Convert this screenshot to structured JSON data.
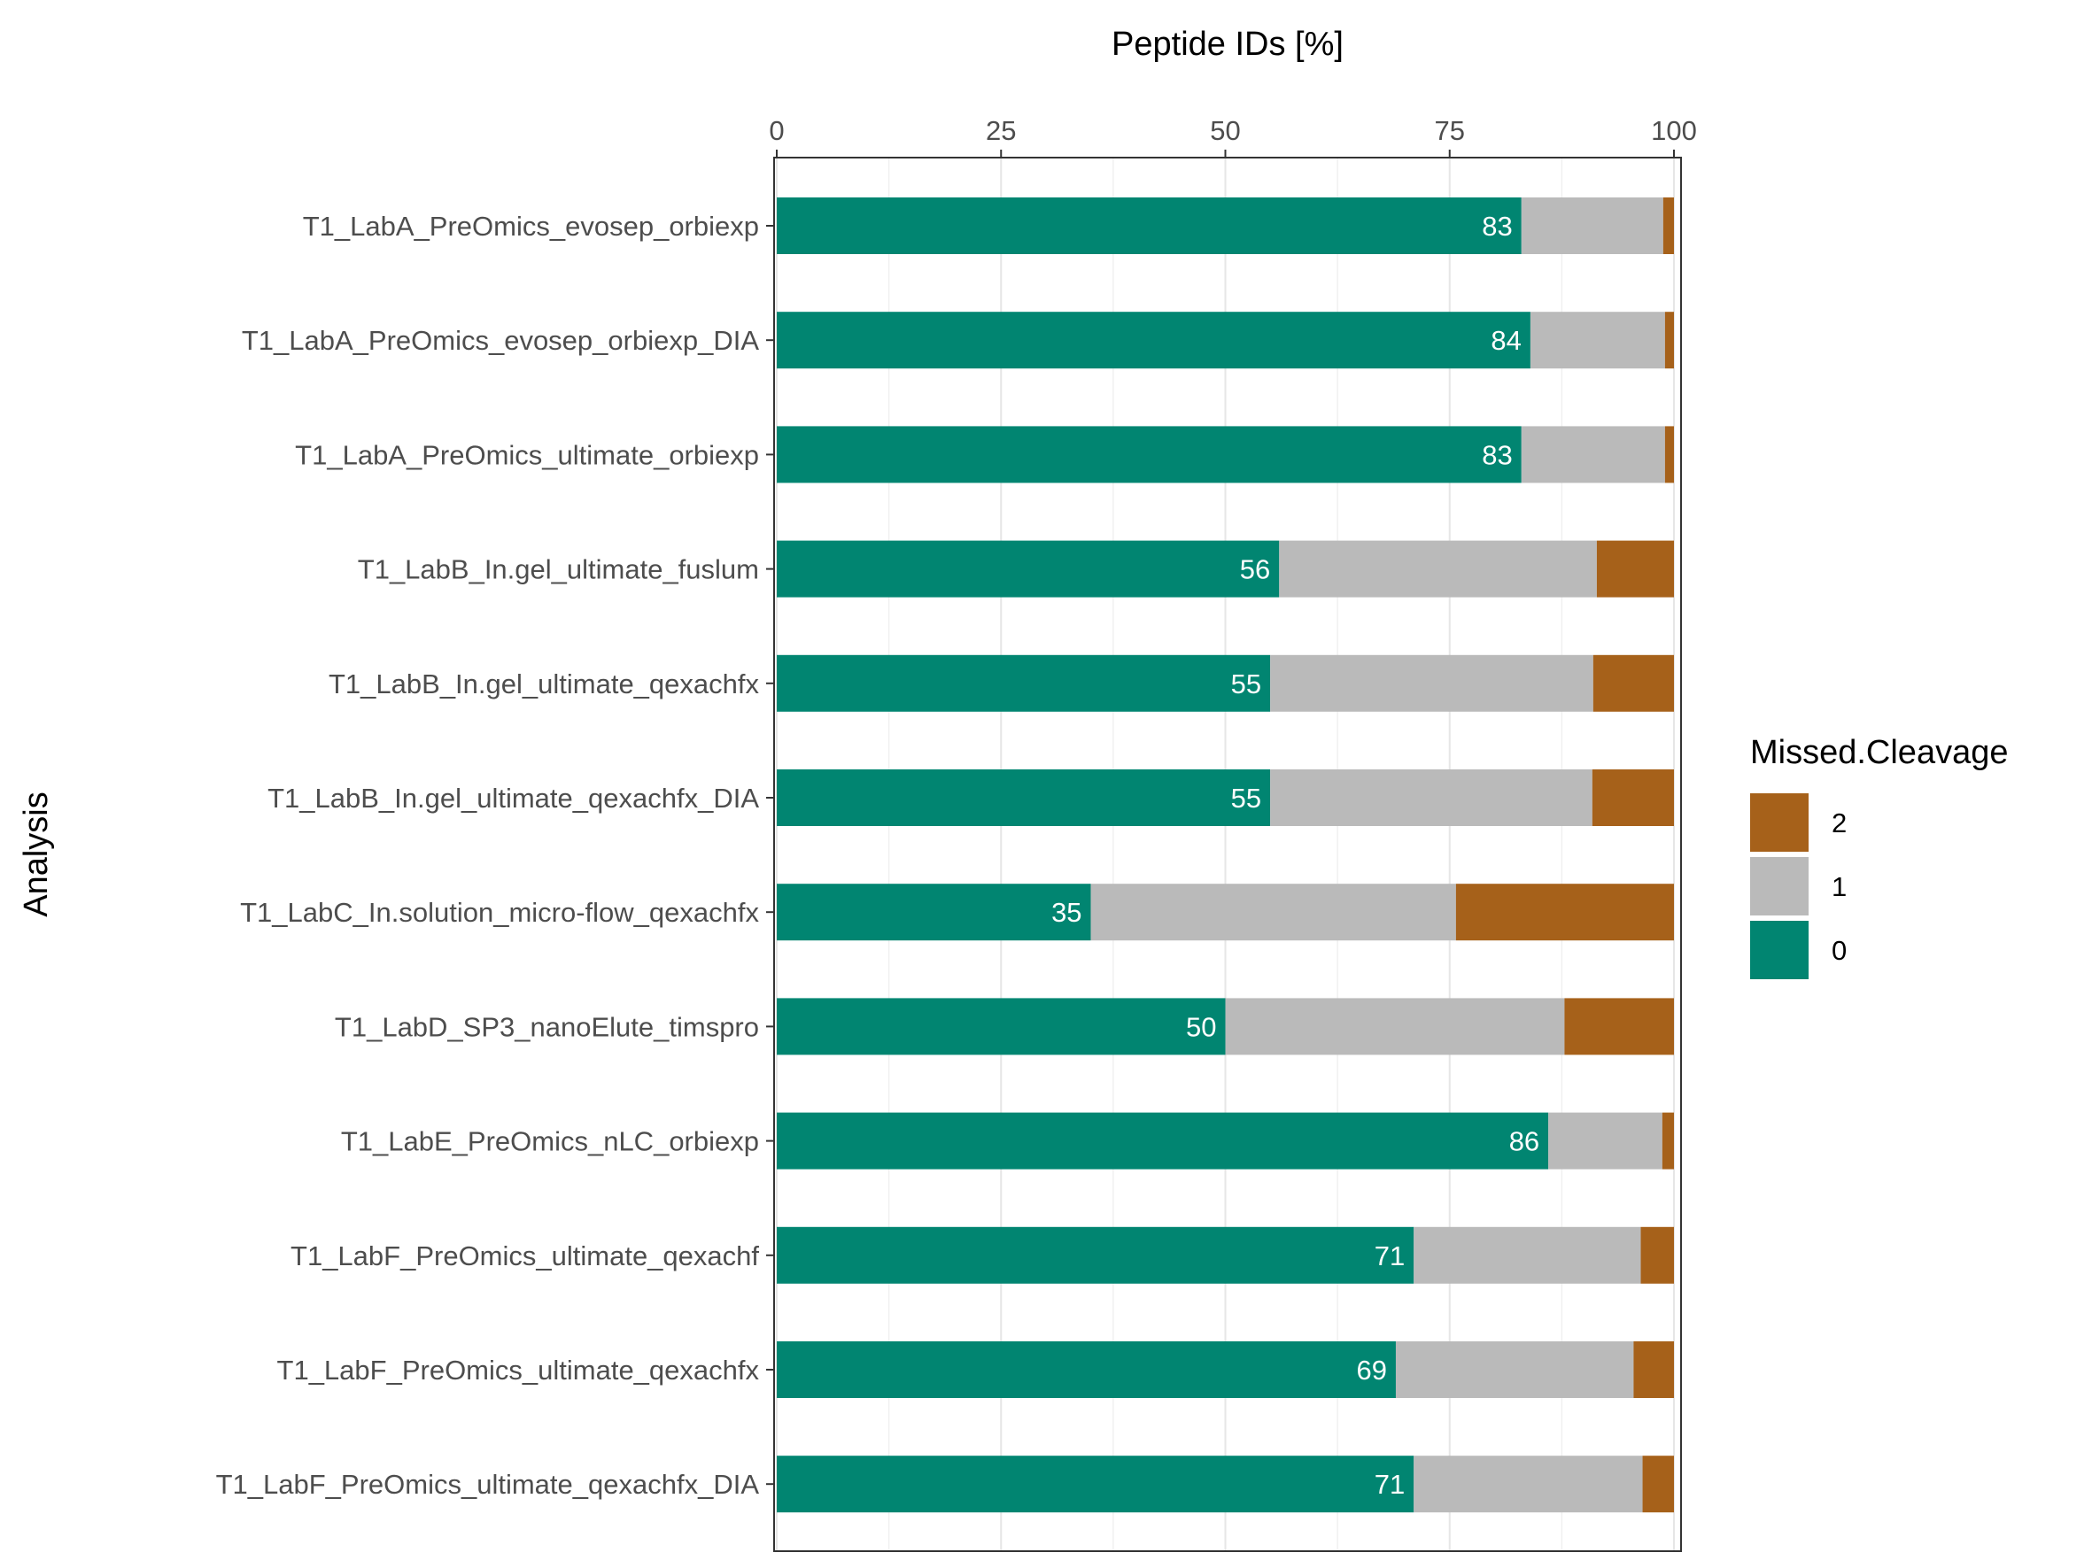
{
  "chart_data": {
    "type": "bar",
    "orientation": "horizontal",
    "stacked": true,
    "xlabel": "Peptide IDs [%]",
    "ylabel": "Analysis",
    "xlim": [
      0,
      100
    ],
    "xticks": [
      "0",
      "25",
      "50",
      "75",
      "100"
    ],
    "x_axis_position": "top",
    "grid": true,
    "categories": [
      "T1_LabA_PreOmics_evosep_orbiexp",
      "T1_LabA_PreOmics_evosep_orbiexp_DIA",
      "T1_LabA_PreOmics_ultimate_orbiexp",
      "T1_LabB_In.gel_ultimate_fuslum",
      "T1_LabB_In.gel_ultimate_qexachfx",
      "T1_LabB_In.gel_ultimate_qexachfx_DIA",
      "T1_LabC_In.solution_micro-flow_qexachfx",
      "T1_LabD_SP3_nanoElute_timspro",
      "T1_LabE_PreOmics_nLC_orbiexp",
      "T1_LabF_PreOmics_ultimate_qexachf",
      "T1_LabF_PreOmics_ultimate_qexachfx",
      "T1_LabF_PreOmics_ultimate_qexachfx_DIA"
    ],
    "series": [
      {
        "name": "0",
        "color": "#018571",
        "values": [
          83,
          84,
          83,
          56,
          55,
          55,
          35,
          50,
          86,
          71,
          69,
          71
        ]
      },
      {
        "name": "1",
        "color": "#bababa",
        "values": [
          15.8,
          15.0,
          16.0,
          35.4,
          36.0,
          35.9,
          40.7,
          37.8,
          12.7,
          25.3,
          26.5,
          25.5
        ]
      },
      {
        "name": "2",
        "color": "#a6611a",
        "values": [
          1.2,
          1.0,
          1.0,
          8.6,
          9.0,
          9.1,
          24.3,
          12.2,
          1.3,
          3.7,
          4.5,
          3.5
        ]
      }
    ],
    "data_labels": [
      "83",
      "84",
      "83",
      "56",
      "55",
      "55",
      "35",
      "50",
      "86",
      "71",
      "69",
      "71"
    ],
    "legend": {
      "title": "Missed.Cleavage",
      "position": "right",
      "order": [
        "2",
        "1",
        "0"
      ]
    }
  }
}
